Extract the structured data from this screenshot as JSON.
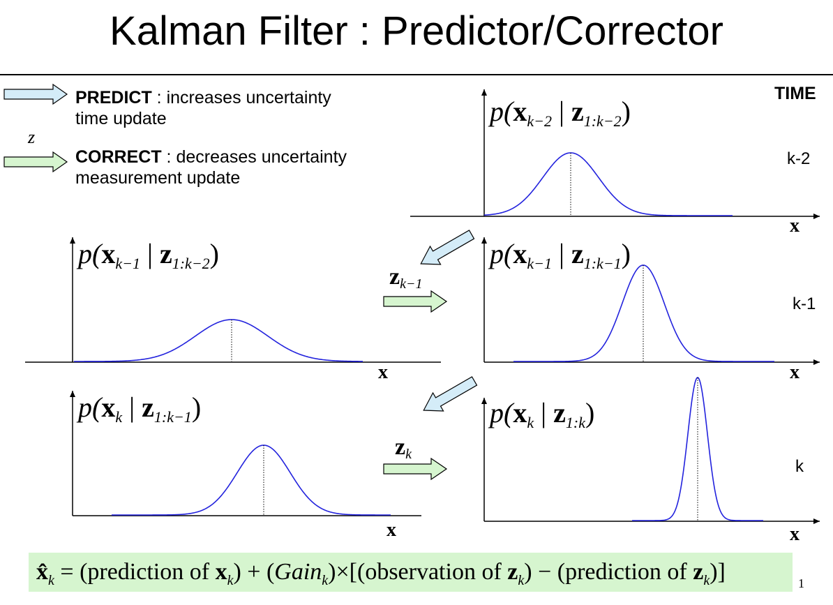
{
  "title": "Kalman Filter : Predictor/Corrector",
  "legend": {
    "predict_bold": "PREDICT",
    "predict_desc": " : increases uncertainty",
    "predict_sub": "time update",
    "correct_bold": "CORRECT",
    "correct_desc": " : decreases uncertainty",
    "correct_sub": "measurement update",
    "z_symbol": "z"
  },
  "time_header": "TIME",
  "time_steps": [
    "k-2",
    "k-1",
    "k"
  ],
  "plots": [
    {
      "label_main": "p(",
      "label_x": "x",
      "label_x_sub": "k−2",
      "label_bar": " | ",
      "label_z": "z",
      "label_z_sub": "1:k−2",
      "label_close": ")",
      "mean": 0.5,
      "peak": 0.9
    },
    {
      "label_main": "p(",
      "label_x": "x",
      "label_x_sub": "k−1",
      "label_bar": " | ",
      "label_z": "z",
      "label_z_sub": "1:k−2",
      "label_close": ")",
      "mean": 0.5,
      "peak": 0.5
    },
    {
      "label_main": "p(",
      "label_x": "x",
      "label_x_sub": "k−1",
      "label_bar": " | ",
      "label_z": "z",
      "label_z_sub": "1:k−1",
      "label_close": ")",
      "mean": 0.55,
      "peak": 1.0
    },
    {
      "label_main": "p(",
      "label_x": "x",
      "label_x_sub": "k",
      "label_bar": " | ",
      "label_z": "z",
      "label_z_sub": "1:k−1",
      "label_close": ")",
      "mean": 0.55,
      "peak": 0.75
    },
    {
      "label_main": "p(",
      "label_x": "x",
      "label_x_sub": "k",
      "label_bar": " | ",
      "label_z": "z",
      "label_z_sub": "1:k",
      "label_close": ")",
      "mean": 0.65,
      "peak": 1.0
    }
  ],
  "axis_label": "x",
  "measurements": [
    {
      "z": "z",
      "sub": "k−1"
    },
    {
      "z": "z",
      "sub": "k"
    }
  ],
  "formula": {
    "xhat": "x̂",
    "xhat_sub": "k",
    "eq": " = (prediction of ",
    "x": "x",
    "x_sub": "k",
    "mid1": ") + (",
    "gain": "Gain",
    "gain_sub": "k",
    "mid2": ")×[(observation of  ",
    "z": "z",
    "z_sub": "k",
    "mid3": ") − (prediction of ",
    "z2": "z",
    "z2_sub": "k",
    "end": ")]"
  },
  "page_number": "1",
  "colors": {
    "curve": "#2222dd",
    "predict_arrow": "#d4ecf8",
    "correct_arrow": "#d6f5cf",
    "formula_bg": "#d6f5cf"
  }
}
